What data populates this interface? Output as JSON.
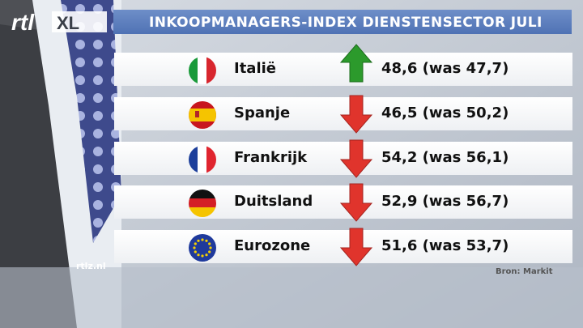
{
  "header": {
    "logo_text": "rtl XL",
    "title": "INKOOPMANAGERS-INDEX DIENSTENSECTOR JULI"
  },
  "rows": [
    {
      "country": "Italië",
      "value": "48,6 (was 47,7)",
      "direction": "up",
      "flag": "italy-flag-icon"
    },
    {
      "country": "Spanje",
      "value": "46,5 (was 50,2)",
      "direction": "down",
      "flag": "spain-flag-icon"
    },
    {
      "country": "Frankrijk",
      "value": "54,2 (was 56,1)",
      "direction": "down",
      "flag": "france-flag-icon"
    },
    {
      "country": "Duitsland",
      "value": "52,9 (was 56,7)",
      "direction": "down",
      "flag": "germany-flag-icon"
    },
    {
      "country": "Eurozone",
      "value": "51,6  (was 53,7)",
      "direction": "down",
      "flag": "eu-flag-icon"
    }
  ],
  "footer": {
    "site": "rtlz.nl",
    "source": "Bron: Markit"
  },
  "colors": {
    "title_bar": "#5b7dbf",
    "arrow_up": "#2c9a2c",
    "arrow_down": "#e0342c"
  }
}
